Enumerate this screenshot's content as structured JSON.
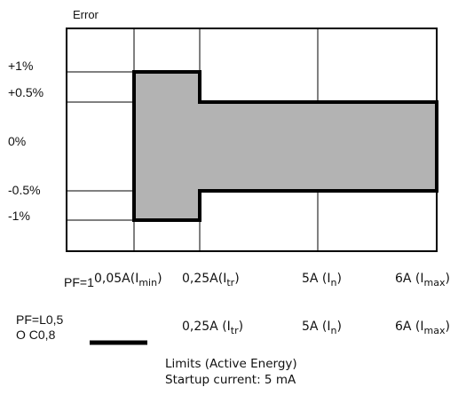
{
  "diagram": {
    "y_axis_title": "Error",
    "y_labels": {
      "plus1": "+1%",
      "plus05": "+0.5%",
      "zero": "0%",
      "minus05": "-0.5%",
      "minus1": "-1%"
    },
    "row1": {
      "label": "PF=1",
      "i_min": {
        "main": "0,05A(I",
        "sub": "min",
        "end": ")"
      },
      "i_tr": {
        "main": "0,25A(I",
        "sub": "tr",
        "end": ")"
      },
      "i_n": {
        "main": "5A (I",
        "sub": "n",
        "end": ")"
      },
      "i_max": {
        "main": "6A (I",
        "sub": "max",
        "end": ")"
      }
    },
    "row2": {
      "label_line1": "PF=L0,5",
      "label_line2": "O C0,8",
      "i_tr": {
        "main": "0,25A (I",
        "sub": "tr",
        "end": ")"
      },
      "i_n": {
        "main": "5A (I",
        "sub": "n",
        "end": ")"
      },
      "i_max": {
        "main": "6A (I",
        "sub": "max",
        "end": ")"
      }
    },
    "legend": {
      "line1": "Limits (Active Energy)",
      "line2": "Startup current: 5 mA"
    },
    "colors": {
      "limit_fill": "#b3b3b3",
      "limit_stroke": "#000000"
    }
  }
}
